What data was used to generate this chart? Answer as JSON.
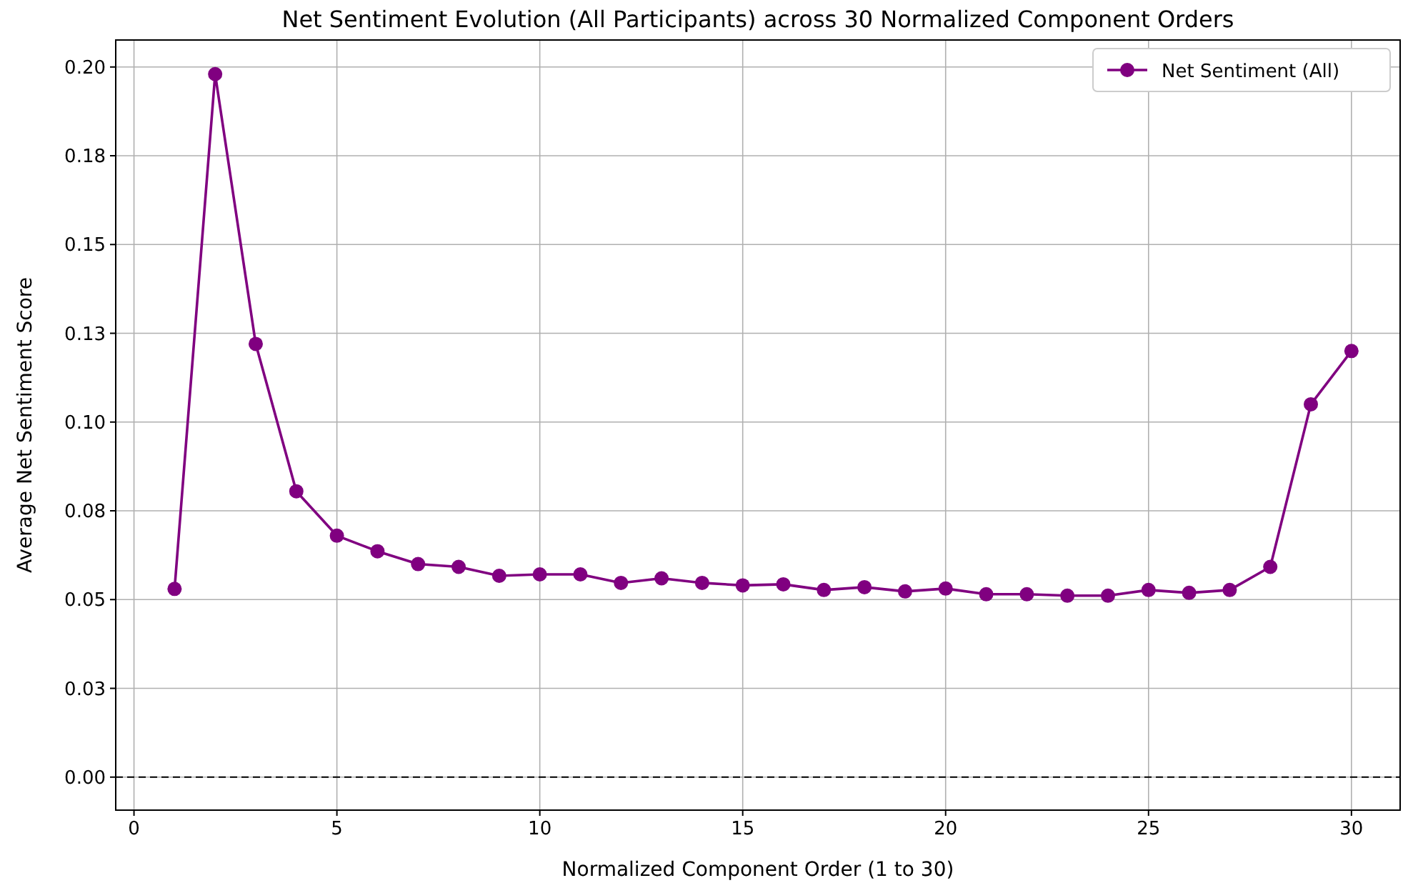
{
  "chart_data": {
    "type": "line",
    "title": "Net Sentiment Evolution (All Participants) across 30 Normalized Component Orders",
    "xlabel": "Normalized Component Order (1 to 30)",
    "ylabel": "Average Net Sentiment Score",
    "x": [
      1,
      2,
      3,
      4,
      5,
      6,
      7,
      8,
      9,
      10,
      11,
      12,
      13,
      14,
      15,
      16,
      17,
      18,
      19,
      20,
      21,
      22,
      23,
      24,
      25,
      26,
      27,
      28,
      29,
      30
    ],
    "series": [
      {
        "name": "Net Sentiment (All)",
        "color": "#800080",
        "values": [
          0.053,
          0.198,
          0.122,
          0.0805,
          0.068,
          0.0636,
          0.06,
          0.0592,
          0.0567,
          0.0571,
          0.0571,
          0.0547,
          0.056,
          0.0547,
          0.054,
          0.0543,
          0.0527,
          0.0535,
          0.0523,
          0.0531,
          0.0515,
          0.0515,
          0.0511,
          0.0511,
          0.0527,
          0.0519,
          0.0527,
          0.0592,
          0.105,
          0.12
        ]
      }
    ],
    "xlim": [
      -0.45,
      31.2
    ],
    "xticks": [
      0,
      5,
      10,
      15,
      20,
      25,
      30
    ],
    "ylim": [
      -0.0093,
      0.2076
    ],
    "yticks": [
      {
        "value": 0,
        "label": "0.00"
      },
      {
        "value": 0.025,
        "label": "0.03"
      },
      {
        "value": 0.05,
        "label": "0.05"
      },
      {
        "value": 0.075,
        "label": "0.08"
      },
      {
        "value": 0.1,
        "label": "0.10"
      },
      {
        "value": 0.125,
        "label": "0.13"
      },
      {
        "value": 0.15,
        "label": "0.15"
      },
      {
        "value": 0.175,
        "label": "0.18"
      },
      {
        "value": 0.2,
        "label": "0.20"
      }
    ],
    "ref_lines": [
      {
        "axis": "y",
        "value": 0,
        "color": "#000000",
        "line_style": "dashed"
      }
    ],
    "grid": true,
    "legend": "top right",
    "marker": "circle",
    "line_style": "solid"
  }
}
